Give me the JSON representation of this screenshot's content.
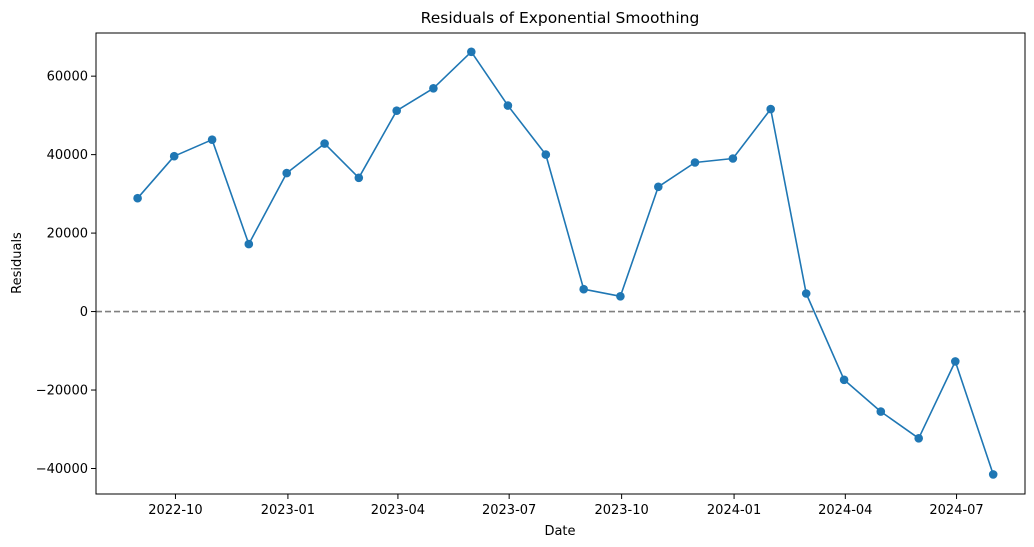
{
  "chart_data": {
    "type": "line",
    "title": "Residuals of Exponential Smoothing",
    "xlabel": "Date",
    "ylabel": "Residuals",
    "x_ticks": [
      "2022-10",
      "2023-01",
      "2023-04",
      "2023-07",
      "2023-10",
      "2024-01",
      "2024-04",
      "2024-07"
    ],
    "y_ticks": [
      -40000,
      -20000,
      0,
      20000,
      40000,
      60000
    ],
    "xlim": [
      "2022-07-28",
      "2024-08-26"
    ],
    "ylim": [
      -46500,
      71000
    ],
    "grid": false,
    "reference_line": {
      "y": 0,
      "style": "dashed",
      "color": "#808080"
    },
    "series": [
      {
        "color": "#1f77b4",
        "marker": "circle",
        "x": [
          "2022-08-31",
          "2022-09-30",
          "2022-10-31",
          "2022-11-30",
          "2022-12-31",
          "2023-01-31",
          "2023-02-28",
          "2023-03-31",
          "2023-04-30",
          "2023-05-31",
          "2023-06-30",
          "2023-07-31",
          "2023-08-31",
          "2023-09-30",
          "2023-10-31",
          "2023-11-30",
          "2023-12-31",
          "2024-01-31",
          "2024-02-29",
          "2024-03-31",
          "2024-04-30",
          "2024-05-31",
          "2024-06-30",
          "2024-07-31"
        ],
        "values": [
          28900,
          39600,
          43800,
          17200,
          35300,
          42800,
          34100,
          51200,
          56900,
          66200,
          52500,
          40000,
          5700,
          3900,
          31800,
          38000,
          39000,
          51600,
          4600,
          -17400,
          -25500,
          -32300,
          -12700,
          -41500
        ]
      }
    ]
  }
}
